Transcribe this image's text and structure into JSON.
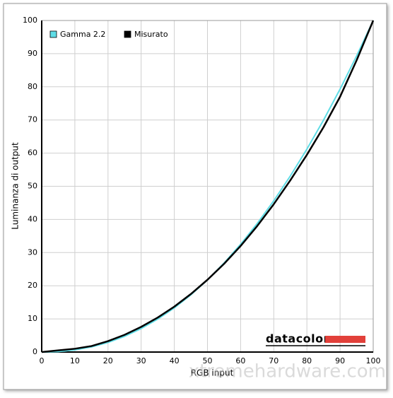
{
  "chart_data": {
    "type": "line",
    "x_label": "RGB input",
    "y_label": "Luminanza di output",
    "x": [
      0,
      5,
      10,
      15,
      20,
      25,
      30,
      35,
      40,
      45,
      50,
      55,
      60,
      65,
      70,
      75,
      80,
      85,
      90,
      95,
      100
    ],
    "series": [
      {
        "name": "Gamma 2.2",
        "color": "#5fdde6",
        "values": [
          0,
          0.14,
          0.63,
          1.54,
          2.9,
          4.74,
          7.08,
          9.93,
          13.32,
          17.26,
          21.76,
          26.84,
          32.5,
          38.76,
          45.63,
          53.11,
          61.21,
          69.94,
          79.31,
          89.33,
          100
        ]
      },
      {
        "name": "Misurato",
        "color": "#000000",
        "values": [
          0,
          0.5,
          1,
          1.8,
          3.3,
          5.2,
          7.6,
          10.4,
          13.7,
          17.5,
          21.8,
          26.6,
          32,
          38,
          44.6,
          51.8,
          59.5,
          67.8,
          77,
          88,
          100
        ]
      }
    ],
    "xlim": [
      0,
      100
    ],
    "ylim": [
      0,
      100
    ],
    "xticks": [
      0,
      10,
      20,
      30,
      40,
      50,
      60,
      70,
      80,
      90,
      100
    ],
    "yticks": [
      0,
      10,
      20,
      30,
      40,
      50,
      60,
      70,
      80,
      90,
      100
    ],
    "grid": true,
    "legend": "top-left",
    "logo": "datacolor",
    "watermark": "xtremehardware.com"
  }
}
